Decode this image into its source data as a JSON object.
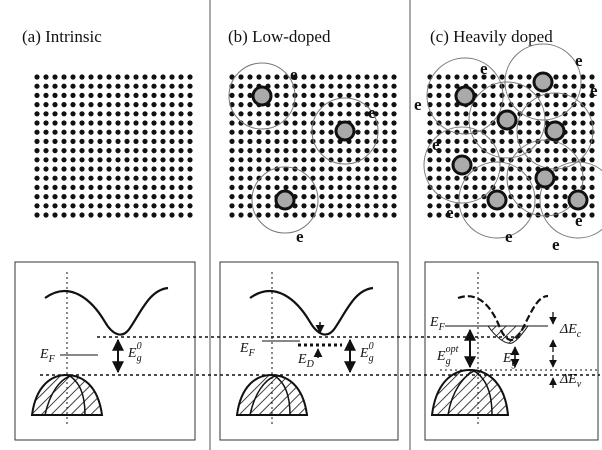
{
  "panels": [
    {
      "title": "(a) Intrinsic",
      "labels": [
        {
          "main": "E",
          "sub": "F"
        },
        {
          "main": "E",
          "sub": "g",
          "sup": "0"
        }
      ]
    },
    {
      "title": "(b) Low-doped",
      "electron_labels": [
        "e",
        "e",
        "e"
      ],
      "labels": [
        {
          "main": "E",
          "sub": "F"
        },
        {
          "main": "E",
          "sub": "D"
        },
        {
          "main": "E",
          "sub": "g",
          "sup": "0"
        }
      ]
    },
    {
      "title": "(c) Heavily doped",
      "electron_labels": [
        "e",
        "e",
        "e",
        "e",
        "e",
        "e",
        "e",
        "e",
        "e"
      ],
      "labels": [
        {
          "main": "E",
          "sub": "F"
        },
        {
          "main": "E",
          "sub": "g",
          "sup": "opt"
        },
        {
          "main": "E",
          "sub": "g"
        },
        {
          "main": "ΔE",
          "sub": "c"
        },
        {
          "main": "ΔE",
          "sub": "v"
        }
      ]
    }
  ]
}
